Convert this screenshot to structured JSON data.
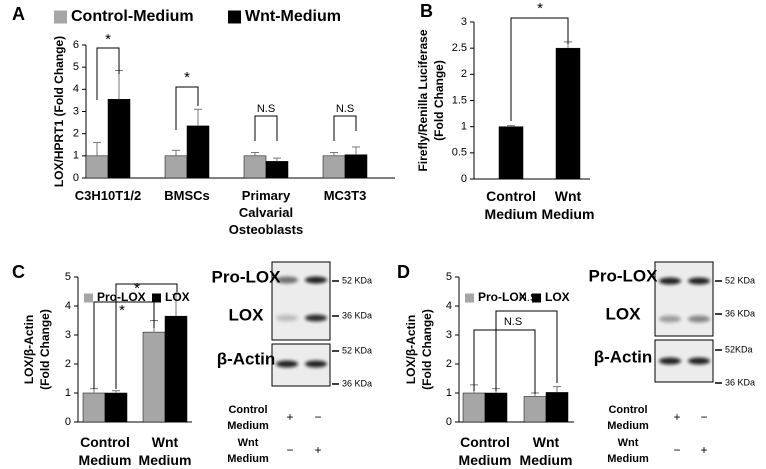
{
  "chart_data": [
    {
      "type": "bar",
      "panel": "A",
      "ylabel": [
        "LOX/HPRT1 (Fold Change)"
      ],
      "categories": [
        "C3H10T1/2",
        "BMSCs",
        "Primary Calvarial Osteoblasts",
        "MC3T3"
      ],
      "series": [
        {
          "name": "Control-Medium",
          "color": "#a6a6a6",
          "values": [
            1,
            1,
            1,
            1
          ],
          "errors": [
            0.6,
            0.25,
            0.15,
            0.15
          ]
        },
        {
          "name": "Wnt-Medium",
          "color": "#000000",
          "values": [
            3.55,
            2.35,
            0.75,
            1.05
          ],
          "errors": [
            1.3,
            0.75,
            0.15,
            0.35
          ]
        }
      ],
      "annotations": [
        "*",
        "*",
        "N.S",
        "N.S"
      ],
      "ylim": [
        0,
        6
      ],
      "yticks": [
        0,
        1,
        2,
        3,
        4,
        5,
        6
      ]
    },
    {
      "type": "bar",
      "panel": "B",
      "ylabel": [
        "Firefly/Renilla Luciferase",
        "(Fold Change)"
      ],
      "categories": [
        "Control Medium",
        "Wnt Medium"
      ],
      "values": [
        1,
        2.5
      ],
      "errors": [
        0.02,
        0.12
      ],
      "color": "#000000",
      "annotations": [
        "*"
      ],
      "ylim": [
        0,
        3
      ],
      "yticks": [
        0,
        0.5,
        1,
        1.5,
        2,
        2.5,
        3
      ]
    },
    {
      "type": "bar",
      "panel": "C",
      "ylabel": [
        "LOX/β-Actin",
        "(Fold Change)"
      ],
      "categories": [
        "Control Medium",
        "Wnt Medium"
      ],
      "series": [
        {
          "name": "Pro-LOX",
          "color": "#a6a6a6",
          "values": [
            1,
            3.1
          ],
          "errors": [
            0.15,
            0.4
          ]
        },
        {
          "name": "LOX",
          "color": "#000000",
          "values": [
            1,
            3.65
          ],
          "errors": [
            0.08,
            0.75
          ]
        }
      ],
      "annotations": [
        "*",
        "*"
      ],
      "ylim": [
        0,
        5
      ],
      "yticks": [
        0,
        1,
        2,
        3,
        4,
        5
      ]
    },
    {
      "type": "bar",
      "panel": "D",
      "ylabel": [
        "LOX/β-Actin",
        "(Fold Change)"
      ],
      "categories": [
        "Control Medium",
        "Wnt Medium"
      ],
      "series": [
        {
          "name": "Pro-LOX",
          "color": "#a6a6a6",
          "values": [
            1,
            0.88
          ],
          "errors": [
            0.28,
            0.12
          ]
        },
        {
          "name": "LOX",
          "color": "#000000",
          "values": [
            1,
            1.02
          ],
          "errors": [
            0.15,
            0.2
          ]
        }
      ],
      "annotations": [
        "N.S",
        "N.S"
      ],
      "ylim": [
        0,
        5
      ],
      "yticks": [
        0,
        1,
        2,
        3,
        4,
        5
      ]
    }
  ],
  "blots": [
    {
      "labels": [
        "Pro-LOX",
        "LOX",
        "β-Actin"
      ],
      "markers": [
        "52 KDa",
        "36 KDa",
        "52 KDa",
        "36 KDa"
      ],
      "conditions": [
        {
          "name": "Control Medium",
          "signs": [
            "+",
            "−"
          ]
        },
        {
          "name": "Wnt Medium",
          "signs": [
            "−",
            "+"
          ]
        }
      ]
    },
    {
      "labels": [
        "Pro-LOX",
        "LOX",
        "β-Actin"
      ],
      "markers": [
        "52 KDa",
        "36 KDa",
        "52KDa",
        "36 KDa"
      ],
      "conditions": [
        {
          "name": "Control Medium",
          "signs": [
            "+",
            "−"
          ]
        },
        {
          "name": "Wnt Medium",
          "signs": [
            "−",
            "+"
          ]
        }
      ]
    }
  ]
}
